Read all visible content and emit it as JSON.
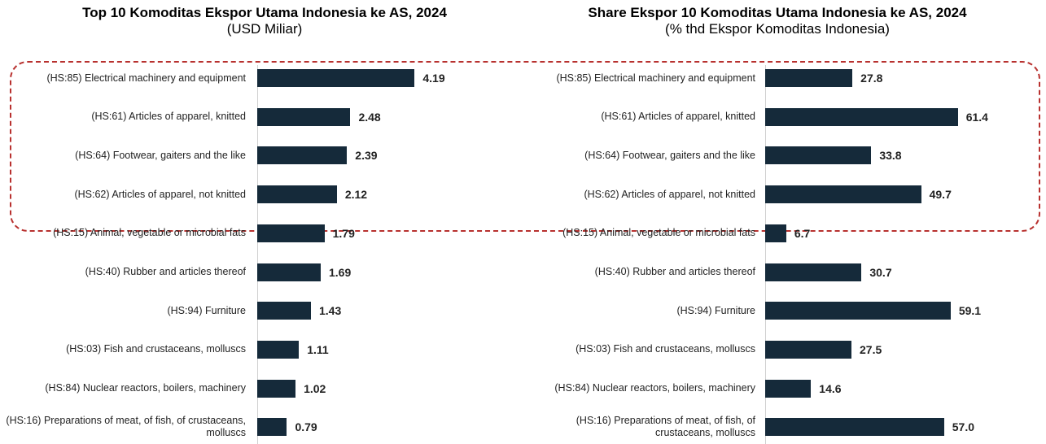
{
  "chart_data": [
    {
      "type": "barh",
      "title": "Top 10 Komoditas Ekspor Utama Indonesia ke AS, 2024",
      "subtitle": "(USD Miliar)",
      "categories": [
        "(HS:85) Electrical machinery and equipment",
        "(HS:61) Articles of apparel, knitted",
        "(HS:64) Footwear, gaiters and the like",
        "(HS:62) Articles of apparel, not knitted",
        "(HS:15) Animal, vegetable or microbial fats",
        "(HS:40) Rubber and articles thereof",
        "(HS:94) Furniture",
        "(HS:03) Fish and crustaceans, molluscs",
        "(HS:84) Nuclear reactors, boilers, machinery",
        "(HS:16) Preparations of meat, of fish, of crustaceans, molluscs"
      ],
      "values": [
        4.19,
        2.48,
        2.39,
        2.12,
        1.79,
        1.69,
        1.43,
        1.11,
        1.02,
        0.79
      ],
      "color": "#152a3a",
      "xlim": [
        0,
        6.5
      ]
    },
    {
      "type": "barh",
      "title": "Share Ekspor 10 Komoditas Utama Indonesia ke AS, 2024",
      "subtitle": "(% thd Ekspor Komoditas Indonesia)",
      "categories": [
        "(HS:85) Electrical machinery and equipment",
        "(HS:61) Articles of apparel, knitted",
        "(HS:64) Footwear, gaiters and the like",
        "(HS:62) Articles of apparel, not knitted",
        "(HS:15) Animal, vegetable or microbial fats",
        "(HS:40) Rubber and articles thereof",
        "(HS:94) Furniture",
        "(HS:03) Fish and crustaceans, molluscs",
        "(HS:84) Nuclear reactors, boilers, machinery",
        "(HS:16) Preparations of meat, of fish, of crustaceans, molluscs"
      ],
      "values": [
        27.8,
        61.4,
        33.8,
        49.7,
        6.7,
        30.7,
        59.1,
        27.5,
        14.6,
        57.0
      ],
      "value_labels": [
        "27.8",
        "61.4",
        "33.8",
        "49.7",
        "6.7",
        "30.7",
        "59.1",
        "27.5",
        "14.6",
        "57.0"
      ],
      "color": "#152a3a",
      "xlim": [
        0,
        83
      ]
    }
  ]
}
